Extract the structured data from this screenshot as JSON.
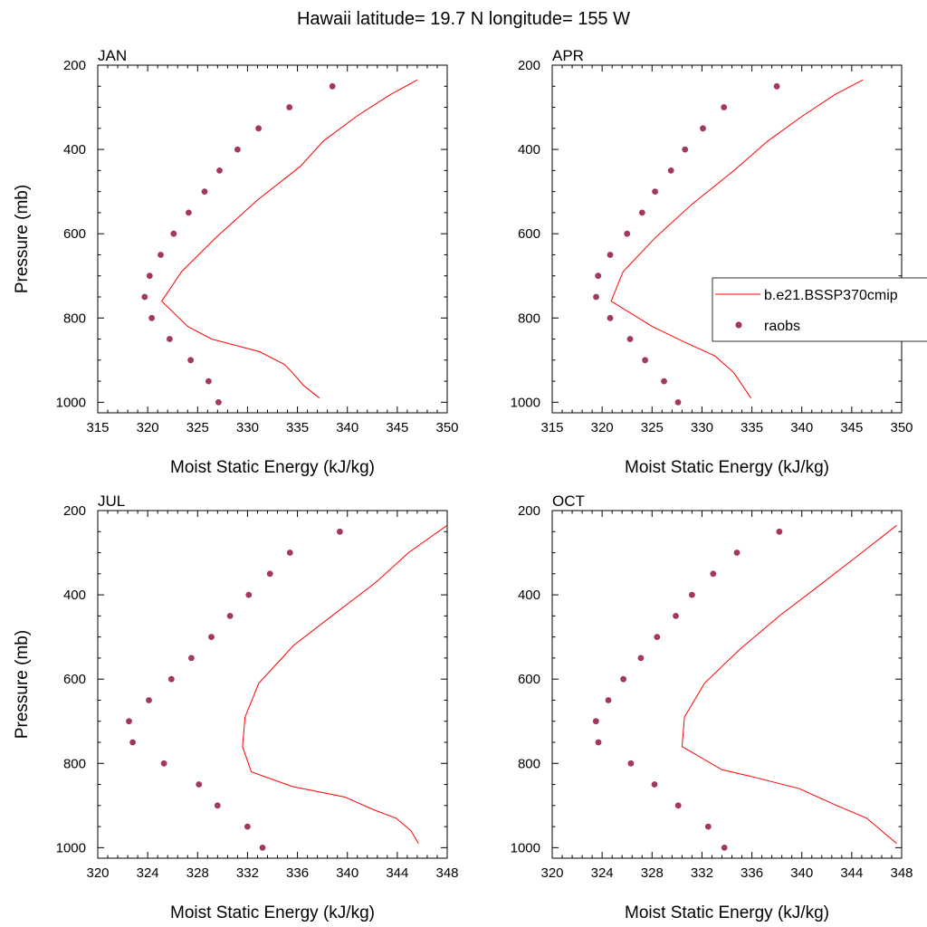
{
  "figure": {
    "title": "Hawaii  latitude= 19.7 N longitude= 155 W"
  },
  "legend": {
    "line_label": "b.e21.BSSP370cmip",
    "points_label": "raobs",
    "line_color": "#ff0000",
    "point_color": "#a33858"
  },
  "chart_data": [
    {
      "type": "line",
      "panel": "JAN",
      "xlabel": "Moist Static Energy (kJ/kg)",
      "ylabel": "Pressure (mb)",
      "xlim": [
        315,
        350
      ],
      "ylim": [
        200,
        1025
      ],
      "y_reversed": true,
      "xticks": [
        315,
        320,
        325,
        330,
        335,
        340,
        345,
        350
      ],
      "yticks": [
        200,
        400,
        600,
        800,
        1000
      ],
      "series": [
        {
          "name": "b.e21.BSSP370cmip",
          "style": "line",
          "x": [
            337.2,
            335.6,
            334.5,
            333.7,
            331.2,
            326.4,
            324.0,
            321.4,
            323.4,
            326.8,
            331.0,
            335.3,
            337.6,
            341.0,
            344.3,
            347.0
          ],
          "y": [
            990,
            960,
            930,
            910,
            880,
            850,
            820,
            760,
            690,
            610,
            520,
            440,
            380,
            320,
            270,
            235
          ]
        },
        {
          "name": "raobs",
          "style": "points",
          "x": [
            327.1,
            326.1,
            324.3,
            322.2,
            320.4,
            319.7,
            320.2,
            321.3,
            322.6,
            324.1,
            325.7,
            327.2,
            329.0,
            331.1,
            334.2,
            338.5
          ],
          "y": [
            1000,
            950,
            900,
            850,
            800,
            750,
            700,
            650,
            600,
            550,
            500,
            450,
            400,
            350,
            300,
            250
          ]
        }
      ]
    },
    {
      "type": "line",
      "panel": "APR",
      "xlabel": "Moist Static Energy (kJ/kg)",
      "ylabel": "",
      "xlim": [
        315,
        350
      ],
      "ylim": [
        200,
        1025
      ],
      "y_reversed": true,
      "xticks": [
        315,
        320,
        325,
        330,
        335,
        340,
        345,
        350
      ],
      "yticks": [
        200,
        400,
        600,
        800,
        1000
      ],
      "series": [
        {
          "name": "b.e21.BSSP370cmip",
          "style": "line",
          "x": [
            334.9,
            333.2,
            331.3,
            328.5,
            325.0,
            320.9,
            322.1,
            325.3,
            329.0,
            333.2,
            336.6,
            340.1,
            343.3,
            346.1
          ],
          "y": [
            990,
            930,
            890,
            860,
            820,
            760,
            690,
            610,
            530,
            450,
            380,
            320,
            270,
            235
          ]
        },
        {
          "name": "raobs",
          "style": "points",
          "x": [
            327.6,
            326.2,
            324.3,
            322.8,
            320.8,
            319.4,
            319.6,
            320.8,
            322.5,
            324.0,
            325.3,
            326.9,
            328.3,
            330.1,
            332.2,
            337.5
          ],
          "y": [
            1000,
            950,
            900,
            850,
            800,
            750,
            700,
            650,
            600,
            550,
            500,
            450,
            400,
            350,
            300,
            250
          ]
        }
      ]
    },
    {
      "type": "line",
      "panel": "JUL",
      "xlabel": "Moist Static Energy (kJ/kg)",
      "ylabel": "Pressure (mb)",
      "xlim": [
        320,
        348
      ],
      "ylim": [
        200,
        1025
      ],
      "y_reversed": true,
      "xticks": [
        320,
        324,
        328,
        332,
        336,
        340,
        344,
        348
      ],
      "yticks": [
        200,
        400,
        600,
        800,
        1000
      ],
      "series": [
        {
          "name": "b.e21.BSSP370cmip",
          "style": "line",
          "x": [
            345.7,
            345.1,
            343.9,
            342.1,
            339.8,
            335.6,
            332.3,
            331.6,
            331.8,
            332.9,
            335.7,
            339.2,
            342.3,
            344.9,
            348.0
          ],
          "y": [
            990,
            960,
            930,
            910,
            880,
            855,
            820,
            760,
            690,
            610,
            520,
            440,
            370,
            300,
            235
          ]
        },
        {
          "name": "raobs",
          "style": "points",
          "x": [
            333.2,
            332.0,
            329.6,
            328.1,
            325.3,
            322.8,
            322.5,
            324.1,
            325.9,
            327.5,
            329.1,
            330.6,
            332.1,
            333.8,
            335.4,
            339.4
          ],
          "y": [
            1000,
            950,
            900,
            850,
            800,
            750,
            700,
            650,
            600,
            550,
            500,
            450,
            400,
            350,
            300,
            250
          ]
        }
      ]
    },
    {
      "type": "line",
      "panel": "OCT",
      "xlabel": "Moist Static Energy (kJ/kg)",
      "ylabel": "",
      "xlim": [
        320,
        348
      ],
      "ylim": [
        200,
        1025
      ],
      "y_reversed": true,
      "xticks": [
        320,
        324,
        328,
        332,
        336,
        340,
        344,
        348
      ],
      "yticks": [
        200,
        400,
        600,
        800,
        1000
      ],
      "series": [
        {
          "name": "b.e21.BSSP370cmip",
          "style": "line",
          "x": [
            347.6,
            346.4,
            345.2,
            342.8,
            339.8,
            335.8,
            333.6,
            330.4,
            330.6,
            332.2,
            335.0,
            338.2,
            341.3,
            344.8,
            347.6
          ],
          "y": [
            990,
            960,
            930,
            900,
            860,
            830,
            815,
            760,
            690,
            610,
            530,
            450,
            380,
            300,
            235
          ]
        },
        {
          "name": "raobs",
          "style": "points",
          "x": [
            333.8,
            332.5,
            330.1,
            328.2,
            326.3,
            323.7,
            323.5,
            324.5,
            325.7,
            327.1,
            328.4,
            329.9,
            331.2,
            332.9,
            334.8,
            338.2
          ],
          "y": [
            1000,
            950,
            900,
            850,
            800,
            750,
            700,
            650,
            600,
            550,
            500,
            450,
            400,
            350,
            300,
            250
          ]
        }
      ]
    }
  ]
}
